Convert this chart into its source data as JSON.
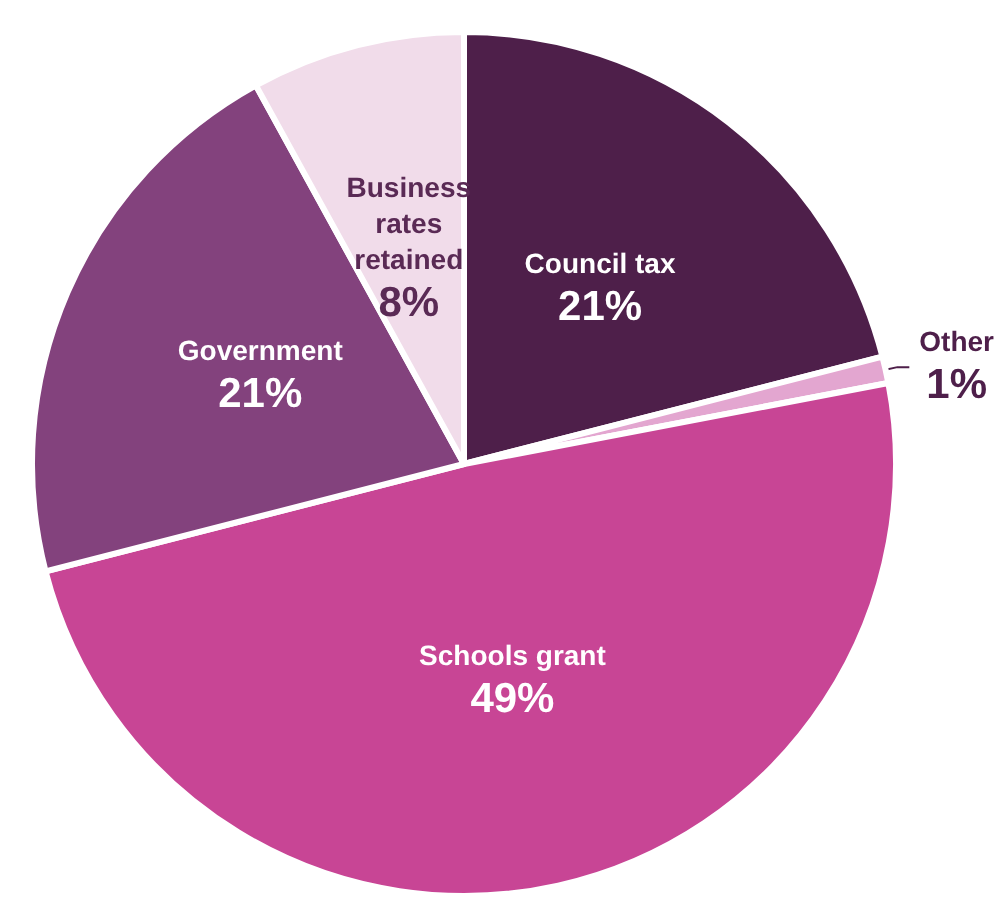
{
  "chart_data": {
    "type": "pie",
    "categories": [
      "Council tax",
      "Other",
      "Schools grant",
      "Government",
      "Business rates retained"
    ],
    "values": [
      21,
      1,
      49,
      21,
      8
    ],
    "colors": [
      "#4e1f4a",
      "#e3a6d0",
      "#c84595",
      "#83427d",
      "#f1dcea"
    ],
    "value_labels": [
      "21%",
      "1%",
      "49%",
      "21%",
      "8%"
    ],
    "legend": false
  }
}
